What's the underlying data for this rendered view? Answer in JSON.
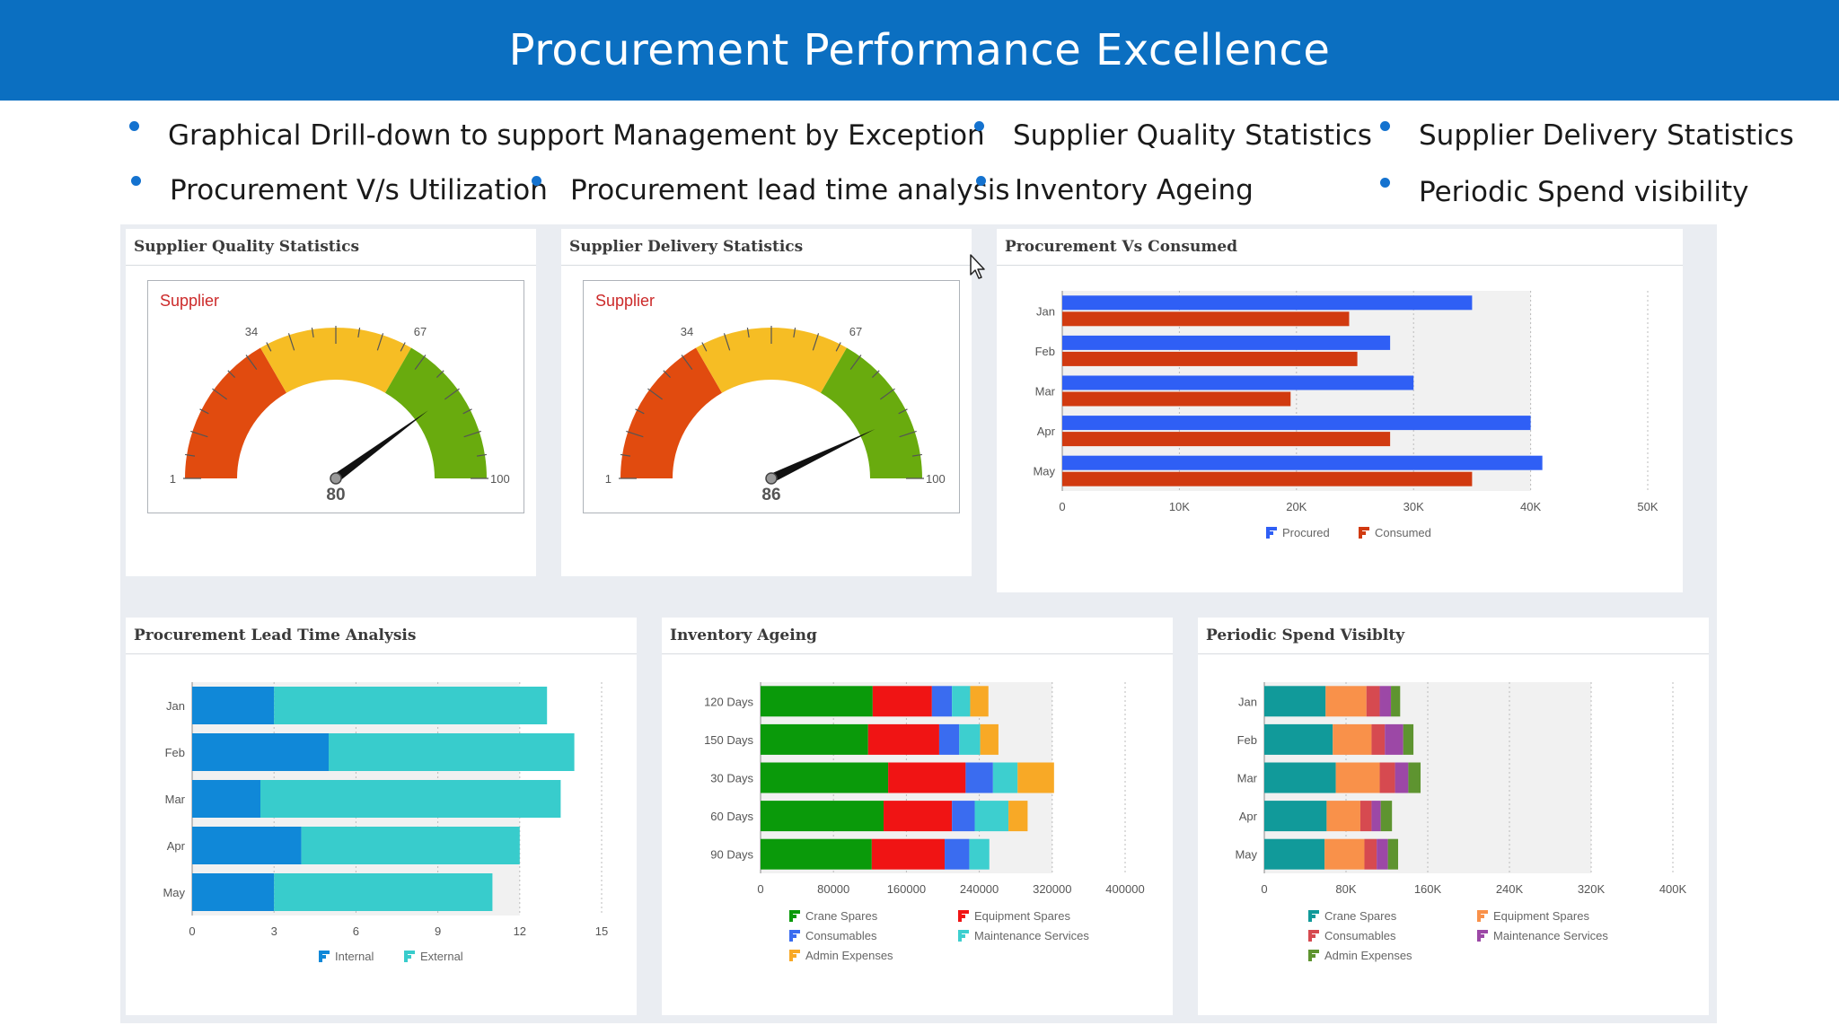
{
  "banner": {
    "title": "Procurement Performance Excellence"
  },
  "bullets": [
    "Graphical Drill-down to support Management by Exception",
    "Supplier Quality Statistics",
    "Supplier Delivery Statistics",
    "Procurement V/s Utilization",
    "Procurement lead time analysis",
    "Inventory Ageing",
    "Periodic Spend visibility"
  ],
  "colors": {
    "banner": "#0b6fc1",
    "procured": "#2f5ff5",
    "consumed": "#d13a10",
    "internal": "#1088d8",
    "external": "#38cccc",
    "crane_spares": "#0a9a0a",
    "equipment_spares": "#f01414",
    "consumables": "#3a6cf0",
    "maintenance_services": "#3dcfcf",
    "admin_expenses": "#f8a926",
    "spend_crane": "#119a9a",
    "spend_equipment": "#f9914a",
    "spend_consumables": "#d64a50",
    "spend_maintenance": "#9c48a6",
    "spend_admin": "#5e9430"
  },
  "panels": {
    "quality": {
      "title": "Supplier Quality Statistics",
      "gauge": {
        "label": "Supplier",
        "min": 1,
        "max": 100,
        "threshold_low": 34,
        "threshold_high": 67,
        "value": 80,
        "min_label": "1",
        "max_label": "100",
        "low_label": "34",
        "high_label": "67",
        "value_label": "80"
      }
    },
    "delivery": {
      "title": "Supplier Delivery Statistics",
      "gauge": {
        "label": "Supplier",
        "min": 1,
        "max": 100,
        "threshold_low": 34,
        "threshold_high": 67,
        "value": 86,
        "min_label": "1",
        "max_label": "100",
        "low_label": "34",
        "high_label": "67",
        "value_label": "86"
      }
    },
    "procurement_vs_consumed": {
      "title": "Procurement Vs Consumed"
    },
    "lead_time": {
      "title": "Procurement Lead Time Analysis"
    },
    "inventory": {
      "title": "Inventory Ageing"
    },
    "spend": {
      "title": "Periodic Spend Visiblty"
    }
  },
  "chart_data": [
    {
      "id": "pvc",
      "type": "bar",
      "orientation": "horizontal",
      "title": "Procurement Vs Consumed",
      "categories": [
        "Jan",
        "Feb",
        "Mar",
        "Apr",
        "May"
      ],
      "series": [
        {
          "name": "Procured",
          "values": [
            35000,
            28000,
            30000,
            40000,
            41000
          ]
        },
        {
          "name": "Consumed",
          "values": [
            24500,
            25200,
            19500,
            28000,
            35000
          ]
        }
      ],
      "xlim": [
        0,
        50000
      ],
      "tick_values": [
        0,
        10000,
        20000,
        30000,
        40000,
        50000
      ],
      "tick_labels": [
        "0",
        "10K",
        "20K",
        "30K",
        "40K",
        "50K"
      ],
      "legend": "bottom"
    },
    {
      "id": "leadtime",
      "type": "bar",
      "orientation": "horizontal",
      "stacked": true,
      "title": "Procurement Lead Time Analysis",
      "categories": [
        "Jan",
        "Feb",
        "Mar",
        "Apr",
        "May"
      ],
      "series": [
        {
          "name": "Internal",
          "values": [
            3,
            5,
            2.5,
            4,
            3
          ]
        },
        {
          "name": "External",
          "values": [
            10,
            9,
            11,
            8,
            8
          ]
        }
      ],
      "xlim": [
        0,
        15
      ],
      "tick_values": [
        0,
        3,
        6,
        9,
        12,
        15
      ],
      "tick_labels": [
        "0",
        "3",
        "6",
        "9",
        "12",
        "15"
      ],
      "legend": "bottom"
    },
    {
      "id": "inventory",
      "type": "bar",
      "orientation": "horizontal",
      "stacked": true,
      "title": "Inventory Ageing",
      "categories": [
        "120 Days",
        "150 Days",
        "30 Days",
        "60 Days",
        "90 Days"
      ],
      "series": [
        {
          "name": "Crane Spares",
          "values": [
            123000,
            118000,
            140000,
            135000,
            122000
          ]
        },
        {
          "name": "Equipment Spares",
          "values": [
            65000,
            78000,
            85000,
            75000,
            80000
          ]
        },
        {
          "name": "Consumables",
          "values": [
            22000,
            22000,
            30000,
            25000,
            27000
          ]
        },
        {
          "name": "Maintenance Services",
          "values": [
            20000,
            23000,
            27000,
            37000,
            22000
          ]
        },
        {
          "name": "Admin Expenses",
          "values": [
            20000,
            20000,
            40000,
            21000,
            0
          ]
        }
      ],
      "xlim": [
        0,
        400000
      ],
      "tick_values": [
        0,
        80000,
        160000,
        240000,
        320000,
        400000
      ],
      "tick_labels": [
        "0",
        "80000",
        "160000",
        "240000",
        "320000",
        "400000"
      ],
      "legend": "bottom"
    },
    {
      "id": "spend",
      "type": "bar",
      "orientation": "horizontal",
      "stacked": true,
      "title": "Periodic Spend Visiblty",
      "categories": [
        "Jan",
        "Feb",
        "Mar",
        "Apr",
        "May"
      ],
      "series": [
        {
          "name": "Crane Spares",
          "values": [
            60000,
            67000,
            70000,
            61000,
            59000
          ]
        },
        {
          "name": "Equipment Spares",
          "values": [
            40000,
            38000,
            43000,
            33000,
            39000
          ]
        },
        {
          "name": "Consumables",
          "values": [
            13000,
            13000,
            15000,
            11000,
            12000
          ]
        },
        {
          "name": "Maintenance Services",
          "values": [
            11000,
            18000,
            13000,
            9000,
            11000
          ]
        },
        {
          "name": "Admin Expenses",
          "values": [
            9000,
            10000,
            12000,
            11000,
            10000
          ]
        }
      ],
      "xlim": [
        0,
        400000
      ],
      "tick_values": [
        0,
        80000,
        160000,
        240000,
        320000,
        400000
      ],
      "tick_labels": [
        "0",
        "80K",
        "160K",
        "240K",
        "320K",
        "400K"
      ],
      "legend": "bottom"
    }
  ]
}
